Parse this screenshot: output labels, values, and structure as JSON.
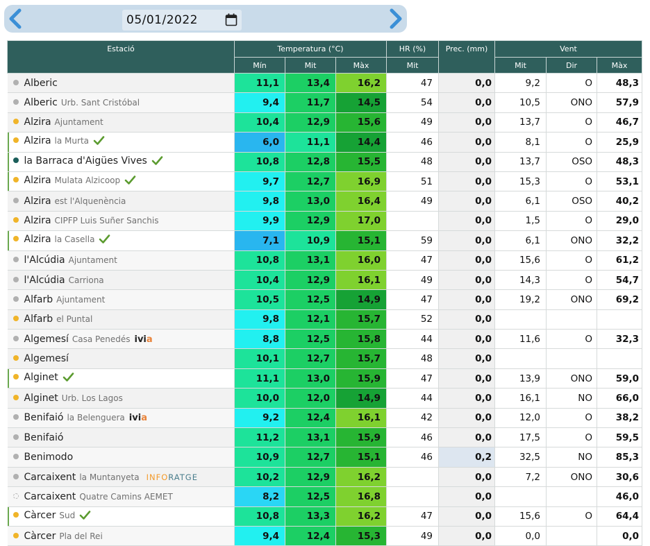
{
  "date_nav": {
    "date_value": "05/01/2022",
    "prev_icon": "chevron-left-icon",
    "next_icon": "chevron-right-icon",
    "calendar_icon": "calendar-icon"
  },
  "headers": {
    "station": "Estació",
    "temperature": "Temperatura (°C)",
    "hr": "HR (%)",
    "prec": "Prec. (mm)",
    "wind": "Vent",
    "t_min": "Mín",
    "t_avg": "Mit",
    "t_max": "Màx",
    "hr_avg": "Mit",
    "w_avg": "Mit",
    "w_dir": "Dir",
    "w_max": "Màx"
  },
  "colors": {
    "header_bg": "#2f5f5c",
    "dot_grey": "#b0b0b0",
    "dot_orange": "#f0b429",
    "dot_teal": "#1b5e5a",
    "check": "#5b9b2f"
  },
  "rows": [
    {
      "name": "Alberic",
      "sub": "",
      "dot": "grey",
      "tag": "",
      "hl": false,
      "tmin": "11,1",
      "tavg": "13,4",
      "tmax": "16,2",
      "hr": "47",
      "prec": "0,0",
      "wavg": "9,2",
      "wdir": "O",
      "wmax": "48,3"
    },
    {
      "name": "Alberic",
      "sub": "Urb. Sant Cristóbal",
      "dot": "grey",
      "tag": "",
      "hl": false,
      "tmin": "9,4",
      "tavg": "11,7",
      "tmax": "14,5",
      "hr": "54",
      "prec": "0,0",
      "wavg": "10,5",
      "wdir": "ONO",
      "wmax": "57,9"
    },
    {
      "name": "Alzira",
      "sub": "Ajuntament",
      "dot": "orange",
      "tag": "",
      "hl": false,
      "tmin": "10,4",
      "tavg": "12,9",
      "tmax": "15,6",
      "hr": "49",
      "prec": "0,0",
      "wavg": "13,7",
      "wdir": "O",
      "wmax": "46,7"
    },
    {
      "name": "Alzira",
      "sub": "la Murta",
      "dot": "orange",
      "tag": "check",
      "hl": true,
      "tmin": "6,0",
      "tavg": "11,1",
      "tmax": "14,4",
      "hr": "46",
      "prec": "0,0",
      "wavg": "8,1",
      "wdir": "O",
      "wmax": "25,9"
    },
    {
      "name": "la Barraca d'Aigües Vives",
      "sub": "",
      "dot": "teal",
      "tag": "check",
      "hl": true,
      "tmin": "10,8",
      "tavg": "12,8",
      "tmax": "15,5",
      "hr": "48",
      "prec": "0,0",
      "wavg": "13,7",
      "wdir": "OSO",
      "wmax": "48,3"
    },
    {
      "name": "Alzira",
      "sub": "Mulata Alzicoop",
      "dot": "orange",
      "tag": "check",
      "hl": true,
      "tmin": "9,7",
      "tavg": "12,7",
      "tmax": "16,9",
      "hr": "51",
      "prec": "0,0",
      "wavg": "15,3",
      "wdir": "O",
      "wmax": "53,1"
    },
    {
      "name": "Alzira",
      "sub": "est l'Alquenència",
      "dot": "grey",
      "tag": "",
      "hl": false,
      "tmin": "9,8",
      "tavg": "13,0",
      "tmax": "16,4",
      "hr": "49",
      "prec": "0,0",
      "wavg": "6,1",
      "wdir": "OSO",
      "wmax": "40,2"
    },
    {
      "name": "Alzira",
      "sub": "CIPFP Luis Suñer Sanchis",
      "dot": "orange",
      "tag": "",
      "hl": false,
      "tmin": "9,9",
      "tavg": "12,9",
      "tmax": "17,0",
      "hr": "",
      "prec": "0,0",
      "wavg": "1,5",
      "wdir": "O",
      "wmax": "29,0"
    },
    {
      "name": "Alzira",
      "sub": "la Casella",
      "dot": "orange",
      "tag": "check",
      "hl": true,
      "tmin": "7,1",
      "tavg": "10,9",
      "tmax": "15,1",
      "hr": "59",
      "prec": "0,0",
      "wavg": "6,1",
      "wdir": "ONO",
      "wmax": "32,2"
    },
    {
      "name": "l'Alcúdia",
      "sub": "Ajuntament",
      "dot": "grey",
      "tag": "",
      "hl": false,
      "tmin": "10,8",
      "tavg": "13,1",
      "tmax": "16,0",
      "hr": "47",
      "prec": "0,0",
      "wavg": "15,6",
      "wdir": "O",
      "wmax": "61,2"
    },
    {
      "name": "l'Alcúdia",
      "sub": "Carriona",
      "dot": "grey",
      "tag": "",
      "hl": false,
      "tmin": "10,4",
      "tavg": "12,9",
      "tmax": "16,1",
      "hr": "49",
      "prec": "0,0",
      "wavg": "14,3",
      "wdir": "O",
      "wmax": "54,7"
    },
    {
      "name": "Alfarb",
      "sub": "Ajuntament",
      "dot": "grey",
      "tag": "",
      "hl": false,
      "tmin": "10,5",
      "tavg": "12,5",
      "tmax": "14,9",
      "hr": "47",
      "prec": "0,0",
      "wavg": "19,2",
      "wdir": "ONO",
      "wmax": "69,2"
    },
    {
      "name": "Alfarb",
      "sub": "el Puntal",
      "dot": "orange",
      "tag": "",
      "hl": false,
      "tmin": "9,8",
      "tavg": "12,1",
      "tmax": "15,7",
      "hr": "52",
      "prec": "0,0",
      "wavg": "",
      "wdir": "",
      "wmax": ""
    },
    {
      "name": "Algemesí",
      "sub": "Casa Penedés",
      "dot": "grey",
      "tag": "ivia",
      "hl": false,
      "tmin": "8,8",
      "tavg": "12,5",
      "tmax": "15,8",
      "hr": "44",
      "prec": "0,0",
      "wavg": "11,6",
      "wdir": "O",
      "wmax": "32,3"
    },
    {
      "name": "Algemesí",
      "sub": "",
      "dot": "orange",
      "tag": "",
      "hl": false,
      "tmin": "10,1",
      "tavg": "12,7",
      "tmax": "15,7",
      "hr": "48",
      "prec": "0,0",
      "wavg": "",
      "wdir": "",
      "wmax": ""
    },
    {
      "name": "Alginet",
      "sub": "",
      "dot": "orange",
      "tag": "check",
      "hl": true,
      "tmin": "11,1",
      "tavg": "13,0",
      "tmax": "15,9",
      "hr": "47",
      "prec": "0,0",
      "wavg": "13,9",
      "wdir": "ONO",
      "wmax": "59,0"
    },
    {
      "name": "Alginet",
      "sub": "Urb. Los Lagos",
      "dot": "orange",
      "tag": "",
      "hl": false,
      "tmin": "10,0",
      "tavg": "12,0",
      "tmax": "14,9",
      "hr": "44",
      "prec": "0,0",
      "wavg": "16,1",
      "wdir": "NO",
      "wmax": "66,0"
    },
    {
      "name": "Benifaió",
      "sub": "la Belenguera",
      "dot": "grey",
      "tag": "ivia",
      "hl": false,
      "tmin": "9,2",
      "tavg": "12,4",
      "tmax": "16,1",
      "hr": "42",
      "prec": "0,0",
      "wavg": "12,0",
      "wdir": "O",
      "wmax": "38,2"
    },
    {
      "name": "Benifaió",
      "sub": "",
      "dot": "grey",
      "tag": "",
      "hl": false,
      "tmin": "11,2",
      "tavg": "13,1",
      "tmax": "15,9",
      "hr": "46",
      "prec": "0,0",
      "wavg": "17,5",
      "wdir": "O",
      "wmax": "59,5"
    },
    {
      "name": "Benimodo",
      "sub": "",
      "dot": "grey",
      "tag": "",
      "hl": false,
      "tmin": "10,9",
      "tavg": "12,7",
      "tmax": "15,1",
      "hr": "46",
      "prec": "0,2",
      "wavg": "32,5",
      "wdir": "NO",
      "wmax": "85,3"
    },
    {
      "name": "Carcaixent",
      "sub": "la Muntanyeta",
      "dot": "grey",
      "tag": "infor",
      "hl": false,
      "tmin": "10,2",
      "tavg": "12,9",
      "tmax": "16,2",
      "hr": "",
      "prec": "0,0",
      "wavg": "7,2",
      "wdir": "ONO",
      "wmax": "30,6"
    },
    {
      "name": "Carcaixent",
      "sub": "Quatre Camins AEMET",
      "dot": "ring",
      "tag": "",
      "hl": false,
      "tmin": "8,2",
      "tavg": "12,5",
      "tmax": "16,8",
      "hr": "",
      "prec": "0,0",
      "wavg": "",
      "wdir": "",
      "wmax": "46,0"
    },
    {
      "name": "Càrcer",
      "sub": "Sud",
      "dot": "orange",
      "tag": "check",
      "hl": true,
      "tmin": "10,8",
      "tavg": "13,3",
      "tmax": "16,2",
      "hr": "47",
      "prec": "0,0",
      "wavg": "15,6",
      "wdir": "O",
      "wmax": "64,4"
    },
    {
      "name": "Càrcer",
      "sub": "Pla del Rei",
      "dot": "orange",
      "tag": "",
      "hl": false,
      "tmin": "9,4",
      "tavg": "12,4",
      "tmax": "15,3",
      "hr": "49",
      "prec": "0,0",
      "wavg": "0,0",
      "wdir": "",
      "wmax": "0,0"
    }
  ],
  "tags": {
    "ivia_prefix": "ivi",
    "ivia_suffix": "a",
    "infor_prefix": "INFO",
    "infor_suffix": "RATGE"
  }
}
